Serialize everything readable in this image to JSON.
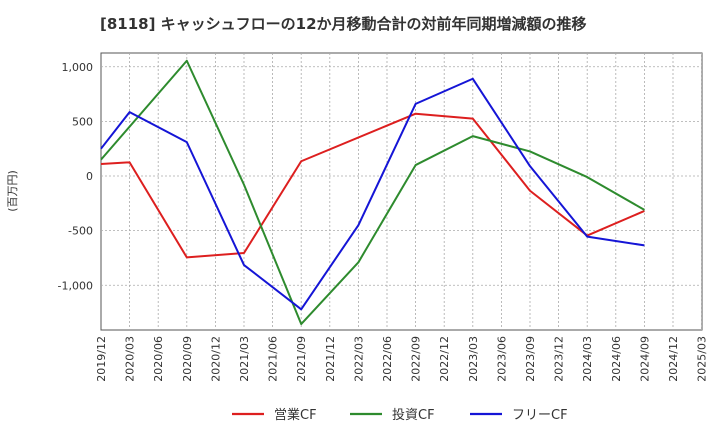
{
  "chart_data": {
    "type": "line",
    "title": "[8118]  キャッシュフローの12か月移動合計の対前年同期増減額の推移",
    "ylabel": "(百万円)",
    "xlabel": "",
    "ylim": [
      -1400,
      1100
    ],
    "yticks": [
      1000,
      500,
      0,
      -500,
      -1000
    ],
    "ytick_labels": [
      "1,000",
      "500",
      "0",
      "-500",
      "-1,000"
    ],
    "x_categories": [
      "2019/12",
      "2020/03",
      "2020/06",
      "2020/09",
      "2020/12",
      "2021/03",
      "2021/06",
      "2021/09",
      "2021/12",
      "2022/03",
      "2022/06",
      "2022/09",
      "2022/12",
      "2023/03",
      "2023/06",
      "2023/09",
      "2023/12",
      "2024/03",
      "2024/06",
      "2024/09",
      "2024/12",
      "2025/03"
    ],
    "grid": true,
    "legend_position": "bottom",
    "series": [
      {
        "name": "営業CF",
        "color": "#dd1f1f",
        "points": [
          [
            "2019/12",
            110
          ],
          [
            "2020/03",
            125
          ],
          [
            "2020/09",
            -745
          ],
          [
            "2021/03",
            -705
          ],
          [
            "2021/09",
            135
          ],
          [
            "2022/09",
            570
          ],
          [
            "2023/03",
            525
          ],
          [
            "2023/09",
            -135
          ],
          [
            "2024/03",
            -545
          ],
          [
            "2024/09",
            -320
          ]
        ]
      },
      {
        "name": "投資CF",
        "color": "#2e8b2e",
        "points": [
          [
            "2019/12",
            150
          ],
          [
            "2020/09",
            1055
          ],
          [
            "2021/03",
            -80
          ],
          [
            "2021/09",
            -1355
          ],
          [
            "2022/03",
            -790
          ],
          [
            "2022/09",
            100
          ],
          [
            "2023/03",
            365
          ],
          [
            "2023/09",
            225
          ],
          [
            "2024/03",
            -10
          ],
          [
            "2024/09",
            -310
          ]
        ]
      },
      {
        "name": "フリーCF",
        "color": "#1515d6",
        "points": [
          [
            "2019/12",
            250
          ],
          [
            "2020/03",
            585
          ],
          [
            "2020/09",
            310
          ],
          [
            "2021/03",
            -815
          ],
          [
            "2021/09",
            -1220
          ],
          [
            "2022/03",
            -450
          ],
          [
            "2022/09",
            660
          ],
          [
            "2023/03",
            890
          ],
          [
            "2023/09",
            90
          ],
          [
            "2024/03",
            -555
          ],
          [
            "2024/09",
            -635
          ]
        ]
      }
    ]
  }
}
